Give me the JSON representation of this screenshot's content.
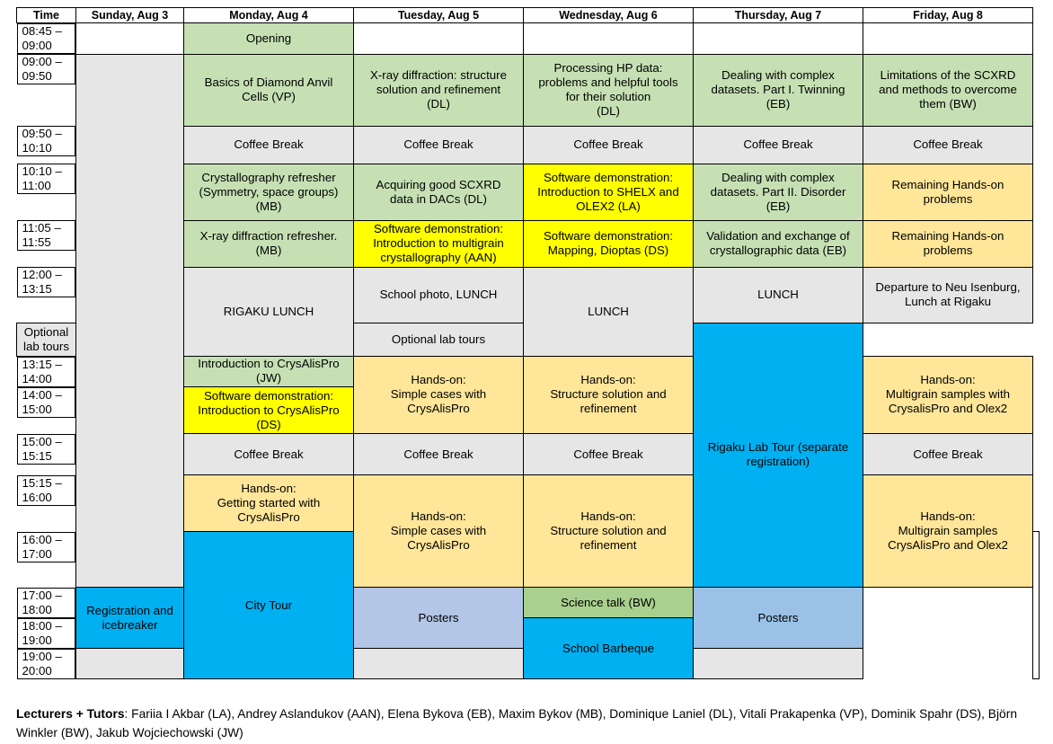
{
  "header": [
    "Time",
    "Sunday, Aug 3",
    "Monday, Aug 4",
    "Tuesday, Aug 5",
    "Wednesday, Aug 6",
    "Thursday, Aug 7",
    "Friday, Aug 8"
  ],
  "times": [
    "08:45 –\n09:00",
    "09:00 –\n09:50",
    "09:50 –\n10:10",
    "10:10 –\n11:00",
    "11:05 –\n11:55",
    "12:00 –\n13:15",
    "13:15 –\n14:00",
    "14:00 –\n15:00",
    "15:00 –\n15:15",
    "15:15 –\n16:00",
    "16:00 –\n17:00",
    "17:00 –\n18:00",
    "18:00 –\n19:00",
    "19:00 –\n20:00"
  ],
  "cells": {
    "opening": "Opening",
    "mon_diamond": "Basics of Diamond Anvil\nCells (VP)",
    "tue_xray": "X-ray diffraction: structure\nsolution and refinement\n(DL)",
    "wed_processing": "Processing HP data:\nproblems and helpful tools\nfor their solution\n(DL)",
    "thu_twinning": "Dealing with complex\ndatasets. Part I. Twinning\n(EB)",
    "fri_limitations": "Limitations of the SCXRD\nand methods to overcome\nthem (BW)",
    "coffee": "Coffee Break",
    "mon_cryst": "Crystallography refresher\n(Symmetry, space groups)\n(MB)",
    "tue_acquiring": "Acquiring good SCXRD\ndata in DACs (DL)",
    "wed_shelx": "Software demonstration:\nIntroduction to SHELX and\nOLEX2 (LA)",
    "thu_disorder": "Dealing with complex\ndatasets. Part II. Disorder\n(EB)",
    "remaining": "Remaining Hands-on\nproblems",
    "mon_xray_ref": "X-ray diffraction refresher.\n(MB)",
    "tue_multigrain": "Software demonstration:\nIntroduction to multigrain\ncrystallography (AAN)",
    "wed_mapping": "Software demonstration:\nMapping, Dioptas (DS)",
    "thu_validation": "Validation and exchange of\ncrystallographic data (EB)",
    "rigaku_lunch": "RIGAKU LUNCH",
    "tue_photo": "School photo, LUNCH",
    "lunch": "LUNCH",
    "fri_departure": "Departure to Neu Isenburg,\nLunch at Rigaku",
    "optional_tours": "Optional lab tours",
    "mon_intro_crysalis": "Introduction to CrysAlisPro\n(JW)",
    "mon_demo_crysalis": "Software demonstration:\nIntroduction to CrysAlisPro\n(DS)",
    "tue_handson_simple": "Hands-on:\nSimple cases with\nCrysAlisPro",
    "wed_handson_structure": "Hands-on:\nStructure solution and\nrefinement",
    "thu_handson_multigrain": "Hands-on:\nMultigrain samples with\nCrysalisPro and Olex2",
    "fri_labtour": "Rigaku Lab Tour (separate\nregistration)",
    "mon_getting_started": "Hands-on:\nGetting started with\nCrysAlisPro",
    "tue_handson_simple2": "Hands-on:\nSimple cases with\nCrysAlisPro",
    "wed_handson_structure2": "Hands-on:\nStructure solution and\nrefinement",
    "thu_handson_multigrain2": "Hands-on:\nMultigrain samples\nCrysAlisPro and Olex2",
    "sun_registration": "Registration and\nicebreaker",
    "mon_citytour": "City Tour",
    "posters": "Posters",
    "wed_science": "Science talk (BW)",
    "wed_barbeque": "School Barbeque"
  },
  "footer": {
    "label": "Lecturers + Tutors",
    "text": ": Fariia I Akbar (LA), Andrey Aslandukov (AAN), Elena Bykova (EB), Maxim Bykov (MB), Dominique Laniel (DL), Vitali Prakapenka (VP), Dominik Spahr (DS), Björn Winkler (BW), Jakub Wojciechowski (JW)"
  },
  "colors": {
    "lecture_green": "#c6e0b4",
    "break_gray": "#e7e6e6",
    "demo_yellow": "#ffff00",
    "handson_orange": "#ffe699",
    "tour_blue": "#00b0f0",
    "posters_blue": "#b4c6e7"
  }
}
